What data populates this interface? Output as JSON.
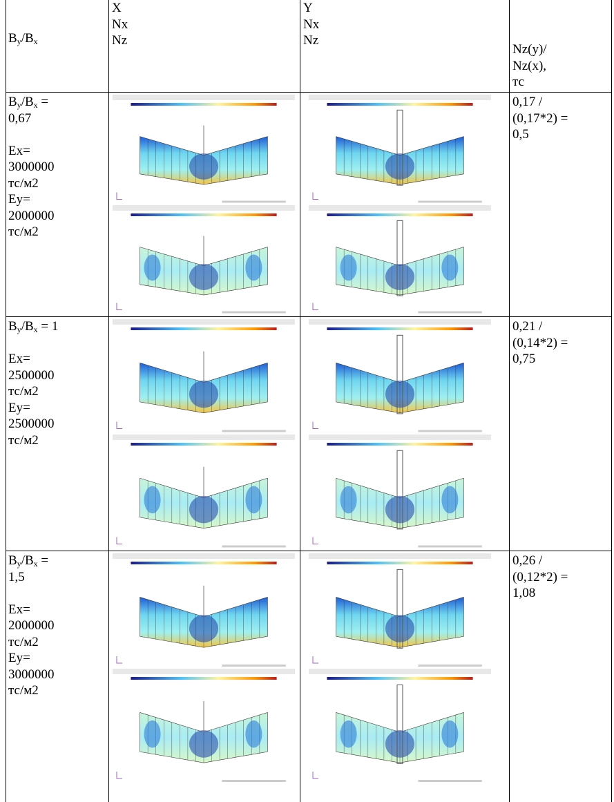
{
  "table": {
    "header": {
      "col1": [
        "B",
        "y",
        "/B",
        "x"
      ],
      "col2": [
        "X",
        "Nx",
        "Nz"
      ],
      "col3": [
        "Y",
        "Nx",
        "Nz"
      ],
      "col4": [
        "Nz(y)/",
        "Nz(x),",
        "тс"
      ]
    },
    "rows": [
      {
        "label_lines": [
          [
            "B",
            "y",
            "/B",
            "x",
            " ="
          ],
          [
            "0,67"
          ]
        ],
        "props": [
          "Ex=",
          "3000000",
          "тс/м2",
          "Ey=",
          "2000000",
          "тс/м2"
        ],
        "result": [
          "0,17 /",
          "(0,17*2) =",
          "0,5"
        ]
      },
      {
        "label_lines": [
          [
            "B",
            "y",
            "/B",
            "x",
            " = 1"
          ]
        ],
        "props": [
          "Ex=",
          "2500000",
          "тс/м2",
          "Ey=",
          "2500000",
          "тс/м2"
        ],
        "result": [
          "0,21 /",
          "(0,14*2) =",
          "0,75"
        ]
      },
      {
        "label_lines": [
          [
            "B",
            "y",
            "/B",
            "x",
            " ="
          ],
          [
            "1,5"
          ]
        ],
        "props": [
          "Ex=",
          "2000000",
          "тс/м2",
          "Ey=",
          "3000000",
          "тс/м2"
        ],
        "result": [
          "0,26 /",
          "(0,12*2) =",
          "1,08"
        ]
      }
    ]
  }
}
